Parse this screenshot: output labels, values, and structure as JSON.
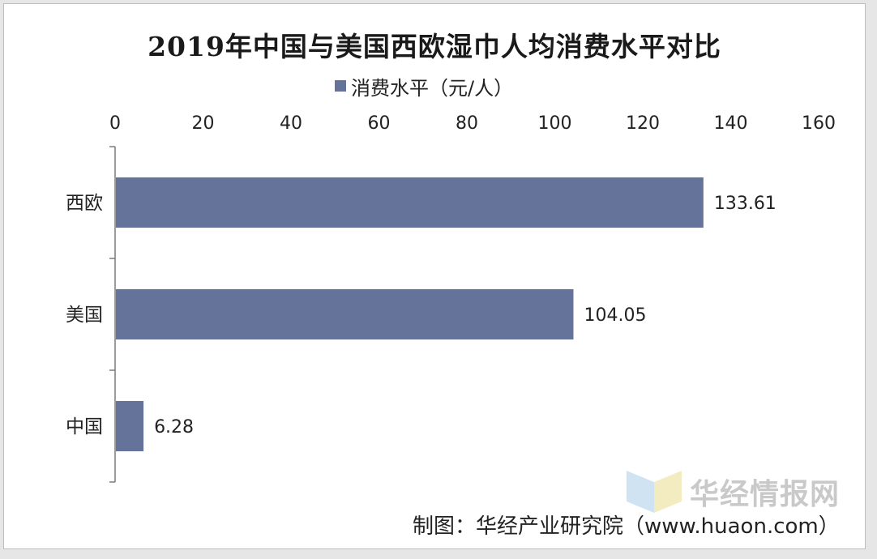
{
  "chart_data": {
    "type": "bar",
    "orientation": "horizontal",
    "title": "2019年中国与美国西欧湿巾人均消费水平对比",
    "categories": [
      "西欧",
      "美国",
      "中国"
    ],
    "series": [
      {
        "name": "消费水平（元/人）",
        "values": [
          133.61,
          104.05,
          6.28
        ],
        "color": "#65729a"
      }
    ],
    "data_labels": [
      "133.61",
      "104.05",
      "6.28"
    ],
    "xlim": [
      0,
      160
    ],
    "x_ticks": [
      0,
      20,
      40,
      60,
      80,
      100,
      120,
      140,
      160
    ],
    "x_axis_position": "top",
    "legend_position": "top",
    "grid": false
  },
  "watermark": {
    "text": "华经情报网"
  },
  "source_note": "制图：华经产业研究院（www.huaon.com）"
}
